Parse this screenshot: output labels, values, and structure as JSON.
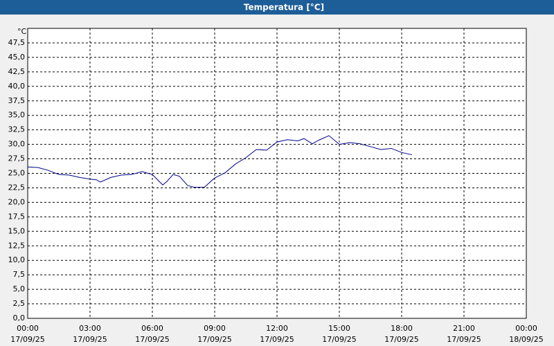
{
  "chart_data": {
    "type": "line",
    "title": "Temperatura [°C]",
    "y_unit": "°C",
    "x": [
      0,
      0.5,
      1,
      1.5,
      2,
      2.5,
      3,
      3.3,
      3.5,
      4,
      4.5,
      5,
      5.5,
      6,
      6.5,
      6.7,
      7,
      7.3,
      7.7,
      8,
      8.5,
      9,
      9.5,
      10,
      10.5,
      11,
      11.5,
      12,
      12.5,
      13,
      13.3,
      13.7,
      14,
      14.5,
      15,
      15.5,
      16,
      16.5,
      17,
      17.5,
      18,
      18.5
    ],
    "series": [
      {
        "name": "Temperatura",
        "color": "#00008b",
        "values": [
          26.1,
          26.0,
          25.5,
          24.8,
          24.7,
          24.3,
          24.0,
          23.9,
          23.5,
          24.3,
          24.7,
          24.8,
          25.3,
          24.8,
          23.0,
          23.6,
          24.8,
          24.5,
          22.9,
          22.6,
          22.6,
          24.2,
          25.1,
          26.6,
          27.7,
          29.1,
          29.0,
          30.4,
          30.8,
          30.6,
          31.0,
          30.1,
          30.7,
          31.5,
          30.0,
          30.3,
          30.1,
          29.6,
          29.1,
          29.3,
          28.6,
          28.2
        ]
      }
    ],
    "xlim": [
      0,
      24
    ],
    "xticks": [
      {
        "value": 0,
        "label": "00:00",
        "date": "17/09/25"
      },
      {
        "value": 3,
        "label": "03:00",
        "date": "17/09/25"
      },
      {
        "value": 6,
        "label": "06:00",
        "date": "17/09/25"
      },
      {
        "value": 9,
        "label": "09:00",
        "date": "17/09/25"
      },
      {
        "value": 12,
        "label": "12:00",
        "date": "17/09/25"
      },
      {
        "value": 15,
        "label": "15:00",
        "date": "17/09/25"
      },
      {
        "value": 18,
        "label": "18:00",
        "date": "17/09/25"
      },
      {
        "value": 21,
        "label": "21:00",
        "date": "17/09/25"
      },
      {
        "value": 24,
        "label": "00:00",
        "date": "18/09/25"
      }
    ],
    "ylim": [
      0,
      50
    ],
    "yticks": [
      {
        "value": 0,
        "label": "0,0"
      },
      {
        "value": 2.5,
        "label": "2,5"
      },
      {
        "value": 5,
        "label": "5,0"
      },
      {
        "value": 7.5,
        "label": "7,5"
      },
      {
        "value": 10,
        "label": "10,0"
      },
      {
        "value": 12.5,
        "label": "12,5"
      },
      {
        "value": 15,
        "label": "15,0"
      },
      {
        "value": 17.5,
        "label": "17,5"
      },
      {
        "value": 20,
        "label": "20,0"
      },
      {
        "value": 22.5,
        "label": "22,5"
      },
      {
        "value": 25,
        "label": "25,0"
      },
      {
        "value": 27.5,
        "label": "27,5"
      },
      {
        "value": 30,
        "label": "30,0"
      },
      {
        "value": 32.5,
        "label": "32,5"
      },
      {
        "value": 35,
        "label": "35,0"
      },
      {
        "value": 37.5,
        "label": "37,5"
      },
      {
        "value": 40,
        "label": "40,0"
      },
      {
        "value": 42.5,
        "label": "42,5"
      },
      {
        "value": 45,
        "label": "45,0"
      },
      {
        "value": 47.5,
        "label": "47,5"
      }
    ],
    "grid": true
  }
}
